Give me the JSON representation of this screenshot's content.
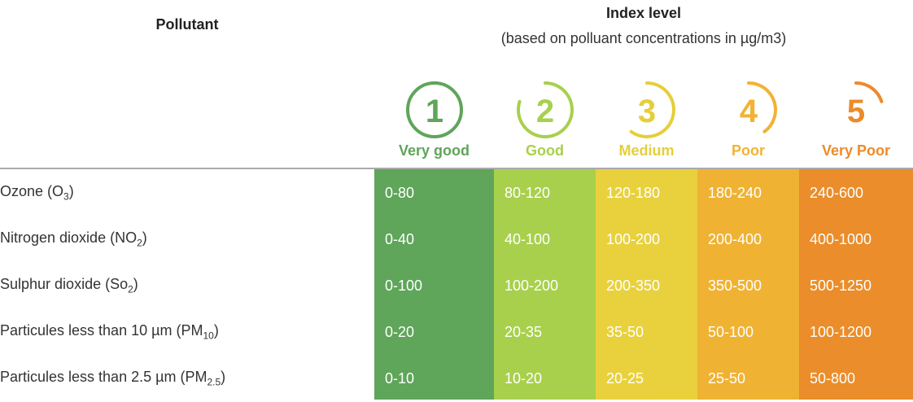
{
  "header": {
    "pollutant_label": "Pollutant",
    "index_title": "Index level",
    "index_subtitle": "(based on polluant concentrations in µg/m3)"
  },
  "levels": [
    {
      "number": "1",
      "label": "Very good",
      "color": "#5fa55a",
      "icon_color": "#5fa55a",
      "label_color": "#5fa55a",
      "arc": 1.0
    },
    {
      "number": "2",
      "label": "Good",
      "color": "#a8d04c",
      "icon_color": "#a8d04c",
      "label_color": "#a8d04c",
      "arc": 0.8
    },
    {
      "number": "3",
      "label": "Medium",
      "color": "#e8d13d",
      "icon_color": "#e6ce3a",
      "label_color": "#e6ce3a",
      "arc": 0.6
    },
    {
      "number": "4",
      "label": "Poor",
      "color": "#f0b233",
      "icon_color": "#f2b233",
      "label_color": "#f2b233",
      "arc": 0.4
    },
    {
      "number": "5",
      "label": "Very Poor",
      "color": "#ea8d2a",
      "icon_color": "#ec8b2a",
      "label_color": "#ec8b2a",
      "arc": 0.2
    }
  ],
  "chart_data": {
    "type": "table",
    "title": "Index level",
    "subtitle": "(based on polluant concentrations in µg/m3)",
    "columns": [
      "Pollutant",
      "Very good",
      "Good",
      "Medium",
      "Poor",
      "Very Poor"
    ],
    "rows": [
      {
        "name": "Ozone (",
        "sub": "3",
        "name_mid": "O",
        "suffix": ")",
        "values": [
          "0-80",
          "80-120",
          "120-180",
          "180-240",
          "240-600"
        ]
      },
      {
        "name": "Nitrogen dioxide (",
        "name_mid": "NO",
        "sub": "2",
        "suffix": ")",
        "values": [
          "0-40",
          "40-100",
          "100-200",
          "200-400",
          "400-1000"
        ]
      },
      {
        "name": "Sulphur dioxide (",
        "name_mid": "So",
        "sub": "2",
        "suffix": ")",
        "values": [
          "0-100",
          "100-200",
          "200-350",
          "350-500",
          "500-1250"
        ]
      },
      {
        "name": "Particules less than 10 µm (",
        "name_mid": "PM",
        "sub": "10",
        "suffix": ")",
        "values": [
          "0-20",
          "20-35",
          "35-50",
          "50-100",
          "100-1200"
        ]
      },
      {
        "name": "Particules less than 2.5 µm (",
        "name_mid": "PM",
        "sub": "2.5",
        "suffix": ")",
        "values": [
          "0-10",
          "10-20",
          "20-25",
          "25-50",
          "50-800"
        ]
      }
    ]
  }
}
